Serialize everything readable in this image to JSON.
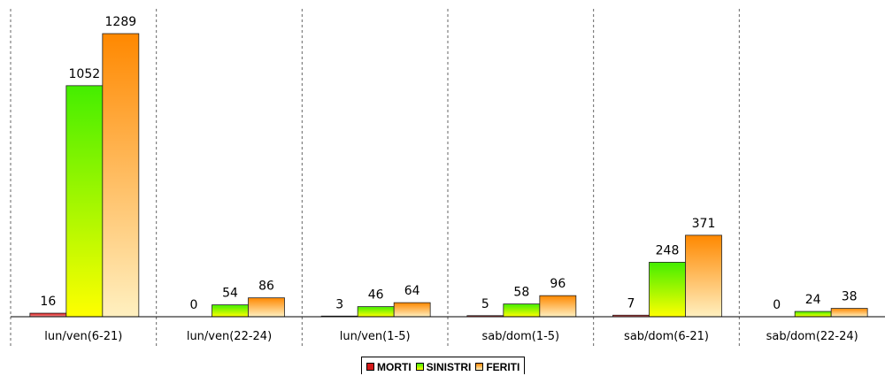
{
  "chart_data": {
    "type": "bar",
    "categories": [
      "lun/ven(6-21)",
      "lun/ven(22-24)",
      "lun/ven(1-5)",
      "sab/dom(1-5)",
      "sab/dom(6-21)",
      "sab/dom(22-24)"
    ],
    "series": [
      {
        "name": "MORTI",
        "values": [
          16,
          0,
          3,
          5,
          7,
          0
        ],
        "color": "#d41a1a"
      },
      {
        "name": "SINISTRI",
        "values": [
          1052,
          54,
          46,
          58,
          248,
          24
        ],
        "color": "#4cf000"
      },
      {
        "name": "FERITI",
        "values": [
          1289,
          86,
          64,
          96,
          371,
          38
        ],
        "color": "#ff8c00"
      }
    ],
    "ylim": [
      0,
      1289
    ],
    "grid": "vertical-dashed",
    "legend_position": "bottom"
  }
}
